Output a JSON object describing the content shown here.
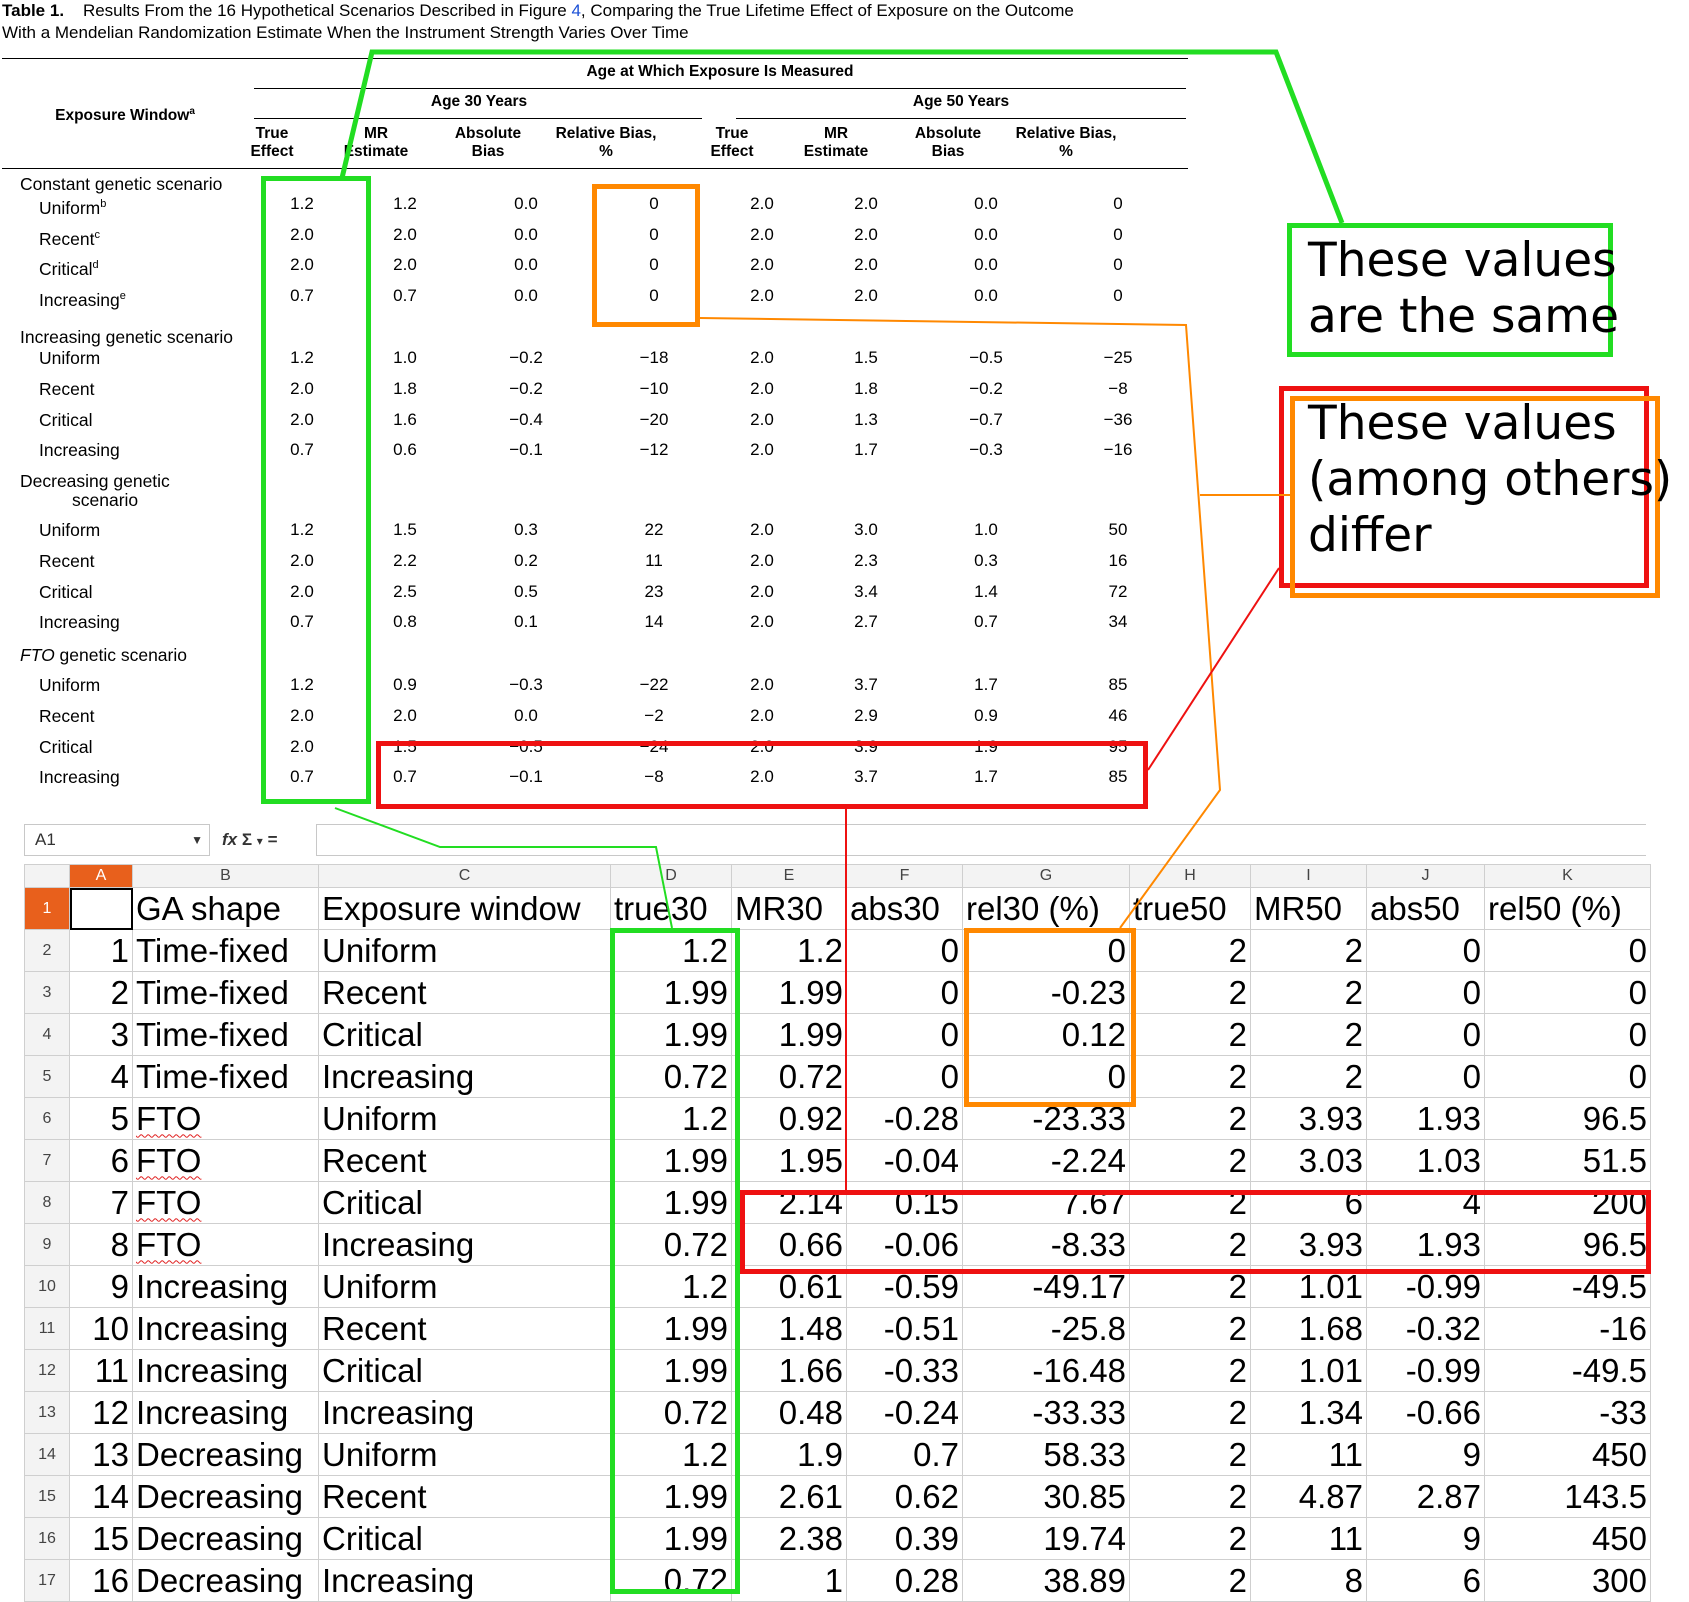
{
  "caption": {
    "label": "Table 1.",
    "text_before": "Results From the 16 Hypothetical Scenarios Described in Figure ",
    "figure_ref": "4",
    "text_after": ", Comparing the True Lifetime Effect of Exposure on the Outcome",
    "line2": "With a Mendelian Randomization Estimate When the Instrument Strength Varies Over Time"
  },
  "paper_table": {
    "exposure_window_header": "Exposure Window",
    "exposure_window_sup": "a",
    "age_header": "Age at Which Exposure Is Measured",
    "age30": "Age 30 Years",
    "age50": "Age 50 Years",
    "col_headers": [
      [
        "True",
        "Effect"
      ],
      [
        "MR",
        "Estimate"
      ],
      [
        "Absolute",
        "Bias"
      ],
      [
        "Relative Bias,",
        "%"
      ],
      [
        "True",
        "Effect"
      ],
      [
        "MR",
        "Estimate"
      ],
      [
        "Absolute",
        "Bias"
      ],
      [
        "Relative Bias,",
        "%"
      ]
    ],
    "groups": [
      {
        "title": "Constant genetic scenario",
        "rows": [
          {
            "label": "Uniform",
            "sup": "b",
            "values": [
              "1.2",
              "1.2",
              "0.0",
              "0",
              "2.0",
              "2.0",
              "0.0",
              "0"
            ]
          },
          {
            "label": "Recent",
            "sup": "c",
            "values": [
              "2.0",
              "2.0",
              "0.0",
              "0",
              "2.0",
              "2.0",
              "0.0",
              "0"
            ]
          },
          {
            "label": "Critical",
            "sup": "d",
            "values": [
              "2.0",
              "2.0",
              "0.0",
              "0",
              "2.0",
              "2.0",
              "0.0",
              "0"
            ]
          },
          {
            "label": "Increasing",
            "sup": "e",
            "values": [
              "0.7",
              "0.7",
              "0.0",
              "0",
              "2.0",
              "2.0",
              "0.0",
              "0"
            ]
          }
        ]
      },
      {
        "title": "Increasing genetic scenario",
        "rows": [
          {
            "label": "Uniform",
            "sup": "",
            "values": [
              "1.2",
              "1.0",
              "−0.2",
              "−18",
              "2.0",
              "1.5",
              "−0.5",
              "−25"
            ]
          },
          {
            "label": "Recent",
            "sup": "",
            "values": [
              "2.0",
              "1.8",
              "−0.2",
              "−10",
              "2.0",
              "1.8",
              "−0.2",
              "−8"
            ]
          },
          {
            "label": "Critical",
            "sup": "",
            "values": [
              "2.0",
              "1.6",
              "−0.4",
              "−20",
              "2.0",
              "1.3",
              "−0.7",
              "−36"
            ]
          },
          {
            "label": "Increasing",
            "sup": "",
            "values": [
              "0.7",
              "0.6",
              "−0.1",
              "−12",
              "2.0",
              "1.7",
              "−0.3",
              "−16"
            ]
          }
        ]
      },
      {
        "title": "Decreasing genetic",
        "title2": "scenario",
        "rows": [
          {
            "label": "Uniform",
            "sup": "",
            "values": [
              "1.2",
              "1.5",
              "0.3",
              "22",
              "2.0",
              "3.0",
              "1.0",
              "50"
            ]
          },
          {
            "label": "Recent",
            "sup": "",
            "values": [
              "2.0",
              "2.2",
              "0.2",
              "11",
              "2.0",
              "2.3",
              "0.3",
              "16"
            ]
          },
          {
            "label": "Critical",
            "sup": "",
            "values": [
              "2.0",
              "2.5",
              "0.5",
              "23",
              "2.0",
              "3.4",
              "1.4",
              "72"
            ]
          },
          {
            "label": "Increasing",
            "sup": "",
            "values": [
              "0.7",
              "0.8",
              "0.1",
              "14",
              "2.0",
              "2.7",
              "0.7",
              "34"
            ]
          }
        ]
      },
      {
        "title_italic": "FTO",
        "title": " genetic scenario",
        "rows": [
          {
            "label": "Uniform",
            "sup": "",
            "values": [
              "1.2",
              "0.9",
              "−0.3",
              "−22",
              "2.0",
              "3.7",
              "1.7",
              "85"
            ]
          },
          {
            "label": "Recent",
            "sup": "",
            "values": [
              "2.0",
              "2.0",
              "0.0",
              "−2",
              "2.0",
              "2.9",
              "0.9",
              "46"
            ]
          },
          {
            "label": "Critical",
            "sup": "",
            "values": [
              "2.0",
              "1.5",
              "−0.5",
              "−24",
              "2.0",
              "3.9",
              "1.9",
              "95"
            ]
          },
          {
            "label": "Increasing",
            "sup": "",
            "values": [
              "0.7",
              "0.7",
              "−0.1",
              "−8",
              "2.0",
              "3.7",
              "1.7",
              "85"
            ]
          }
        ]
      }
    ]
  },
  "spreadsheet": {
    "name_box": "A1",
    "toolbar_icons": [
      "fx",
      "Σ",
      "▾",
      "="
    ],
    "column_letters": [
      "A",
      "B",
      "C",
      "D",
      "E",
      "F",
      "G",
      "H",
      "I",
      "J",
      "K"
    ],
    "headers": [
      "",
      "GA shape",
      "Exposure window",
      "true30",
      "MR30",
      "abs30",
      "rel30 (%)",
      "true50",
      "MR50",
      "abs50",
      "rel50 (%)"
    ],
    "rows": [
      [
        "1",
        "Time-fixed",
        "Uniform",
        "1.2",
        "1.2",
        "0",
        "0",
        "2",
        "2",
        "0",
        "0"
      ],
      [
        "2",
        "Time-fixed",
        "Recent",
        "1.99",
        "1.99",
        "0",
        "-0.23",
        "2",
        "2",
        "0",
        "0"
      ],
      [
        "3",
        "Time-fixed",
        "Critical",
        "1.99",
        "1.99",
        "0",
        "0.12",
        "2",
        "2",
        "0",
        "0"
      ],
      [
        "4",
        "Time-fixed",
        "Increasing",
        "0.72",
        "0.72",
        "0",
        "0",
        "2",
        "2",
        "0",
        "0"
      ],
      [
        "5",
        "FTO",
        "Uniform",
        "1.2",
        "0.92",
        "-0.28",
        "-23.33",
        "2",
        "3.93",
        "1.93",
        "96.5"
      ],
      [
        "6",
        "FTO",
        "Recent",
        "1.99",
        "1.95",
        "-0.04",
        "-2.24",
        "2",
        "3.03",
        "1.03",
        "51.5"
      ],
      [
        "7",
        "FTO",
        "Critical",
        "1.99",
        "2.14",
        "0.15",
        "7.67",
        "2",
        "6",
        "4",
        "200"
      ],
      [
        "8",
        "FTO",
        "Increasing",
        "0.72",
        "0.66",
        "-0.06",
        "-8.33",
        "2",
        "3.93",
        "1.93",
        "96.5"
      ],
      [
        "9",
        "Increasing",
        "Uniform",
        "1.2",
        "0.61",
        "-0.59",
        "-49.17",
        "2",
        "1.01",
        "-0.99",
        "-49.5"
      ],
      [
        "10",
        "Increasing",
        "Recent",
        "1.99",
        "1.48",
        "-0.51",
        "-25.8",
        "2",
        "1.68",
        "-0.32",
        "-16"
      ],
      [
        "11",
        "Increasing",
        "Critical",
        "1.99",
        "1.66",
        "-0.33",
        "-16.48",
        "2",
        "1.01",
        "-0.99",
        "-49.5"
      ],
      [
        "12",
        "Increasing",
        "Increasing",
        "0.72",
        "0.48",
        "-0.24",
        "-33.33",
        "2",
        "1.34",
        "-0.66",
        "-33"
      ],
      [
        "13",
        "Decreasing",
        "Uniform",
        "1.2",
        "1.9",
        "0.7",
        "58.33",
        "2",
        "11",
        "9",
        "450"
      ],
      [
        "14",
        "Decreasing",
        "Recent",
        "1.99",
        "2.61",
        "0.62",
        "30.85",
        "2",
        "4.87",
        "2.87",
        "143.5"
      ],
      [
        "15",
        "Decreasing",
        "Critical",
        "1.99",
        "2.38",
        "0.39",
        "19.74",
        "2",
        "11",
        "9",
        "450"
      ],
      [
        "16",
        "Decreasing",
        "Increasing",
        "0.72",
        "1",
        "0.28",
        "38.89",
        "2",
        "8",
        "6",
        "300"
      ]
    ]
  },
  "annotations": {
    "same": {
      "line1": "These values",
      "line2": "are the same",
      "color": "#22dd22"
    },
    "differ": {
      "line1": "These values",
      "line2": "(among others)",
      "line3": "differ",
      "color_red": "#ee1111",
      "color_orange": "#ff8800"
    }
  }
}
